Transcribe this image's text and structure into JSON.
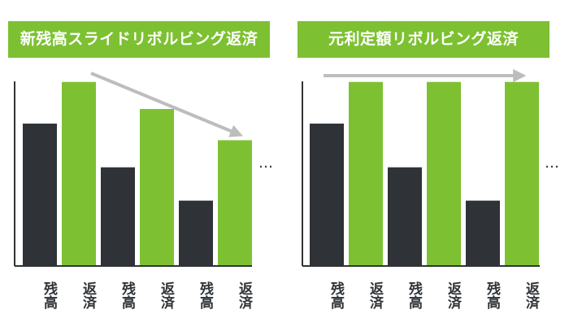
{
  "diagrams": [
    {
      "id": "left",
      "title": "新残高スライドリボルビング返済",
      "bars": [
        {
          "label": "残高",
          "kind": "balance",
          "value": 0.68
        },
        {
          "label": "返済",
          "kind": "repayment",
          "value": 0.88
        },
        {
          "label": "残高",
          "kind": "balance",
          "value": 0.47
        },
        {
          "label": "返済",
          "kind": "repayment",
          "value": 0.75
        },
        {
          "label": "残高",
          "kind": "balance",
          "value": 0.31
        },
        {
          "label": "返済",
          "kind": "repayment",
          "value": 0.6
        }
      ],
      "trend": "decreasing",
      "ellipsis": "…"
    },
    {
      "id": "right",
      "title": "元利定額リボルビング返済",
      "bars": [
        {
          "label": "残高",
          "kind": "balance",
          "value": 0.68
        },
        {
          "label": "返済",
          "kind": "repayment",
          "value": 0.88
        },
        {
          "label": "残高",
          "kind": "balance",
          "value": 0.47
        },
        {
          "label": "返済",
          "kind": "repayment",
          "value": 0.88
        },
        {
          "label": "残高",
          "kind": "balance",
          "value": 0.31
        },
        {
          "label": "返済",
          "kind": "repayment",
          "value": 0.88
        }
      ],
      "trend": "flat",
      "ellipsis": "…"
    }
  ],
  "colors": {
    "balance": "#2f3337",
    "repayment": "#7dc132",
    "arrow": "#bdbdbd",
    "axis": "#2f3337",
    "title_bg": "#7dc132"
  }
}
